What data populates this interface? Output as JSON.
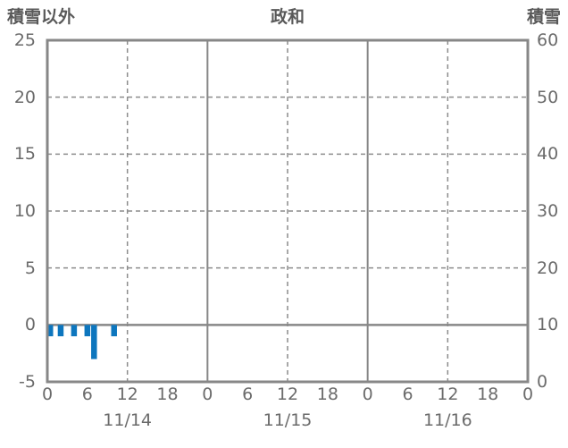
{
  "chart_data": {
    "type": "bar",
    "title": "政和",
    "left_axis": {
      "label": "積雪以外",
      "min": -5,
      "max": 25,
      "ticks": [
        25,
        20,
        15,
        10,
        5,
        0,
        -5
      ]
    },
    "right_axis": {
      "label": "積雪",
      "min": 0,
      "max": 60,
      "ticks": [
        60,
        50,
        40,
        30,
        20,
        10,
        0
      ]
    },
    "x_axis": {
      "hours_total": 72,
      "tick_interval_hours": 6,
      "tick_labels": [
        "0",
        "6",
        "12",
        "18",
        "0",
        "6",
        "12",
        "18",
        "0",
        "6",
        "12",
        "18",
        "0"
      ],
      "dates": [
        "11/14",
        "11/15",
        "11/16"
      ]
    },
    "grid": {
      "h_dashed_values": [
        20,
        15,
        10,
        5
      ],
      "zero_line_value": 0,
      "v_dashed_hours": [
        12,
        36,
        60
      ],
      "v_solid_hours": [
        24,
        48
      ]
    },
    "series": [
      {
        "name": "積雪以外",
        "axis": "left",
        "color": "#0d76be",
        "points": [
          {
            "hour": 0,
            "value": -1
          },
          {
            "hour": 2,
            "value": -1
          },
          {
            "hour": 4,
            "value": -1
          },
          {
            "hour": 6,
            "value": -1
          },
          {
            "hour": 7,
            "value": -3
          },
          {
            "hour": 10,
            "value": -1
          }
        ]
      }
    ],
    "colors": {
      "axis": "#878787",
      "grid": "#8c8c8c",
      "text": "#6b6b6b",
      "title_text": "#595959",
      "bar": "#0d76be",
      "background": "#ffffff"
    }
  }
}
